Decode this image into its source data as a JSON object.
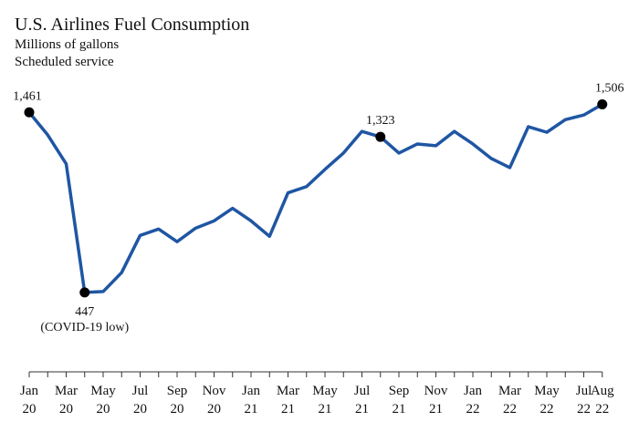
{
  "chart_data": {
    "type": "line",
    "title": "U.S. Airlines Fuel Consumption",
    "subtitle": [
      "Millions of gallons",
      "Scheduled service"
    ],
    "categories": [
      "Jan 20",
      null,
      "Mar 20",
      null,
      "May 20",
      null,
      "Jul 20",
      null,
      "Sep 20",
      null,
      "Nov 20",
      null,
      "Jan 21",
      null,
      "Mar 21",
      null,
      "May 21",
      null,
      "Jul 21",
      null,
      "Sep 21",
      null,
      "Nov 21",
      null,
      "Jan 22",
      null,
      "Mar 22",
      null,
      "May 22",
      null,
      "Jul 22",
      "Aug 22"
    ],
    "series": [
      {
        "name": "Fuel consumption",
        "color": "#1f56a3",
        "values": [
          1461,
          1334,
          1171,
          447,
          452,
          559,
          768,
          804,
          733,
          809,
          850,
          921,
          850,
          763,
          1008,
          1043,
          1140,
          1232,
          1354,
          1323,
          1232,
          1283,
          1273,
          1354,
          1283,
          1201,
          1150,
          1380,
          1349,
          1420,
          1446,
          1506
        ],
        "value_labels": [
          "1,461",
          null,
          null,
          "447",
          null,
          null,
          null,
          null,
          null,
          null,
          null,
          null,
          null,
          null,
          null,
          null,
          null,
          null,
          null,
          "1,323",
          null,
          null,
          null,
          null,
          null,
          null,
          null,
          null,
          null,
          null,
          null,
          "1,506"
        ]
      }
    ],
    "annotations": [
      {
        "point": 3,
        "text": "(COVID-19 low)"
      }
    ],
    "ylim": [
      0,
      1950
    ]
  }
}
